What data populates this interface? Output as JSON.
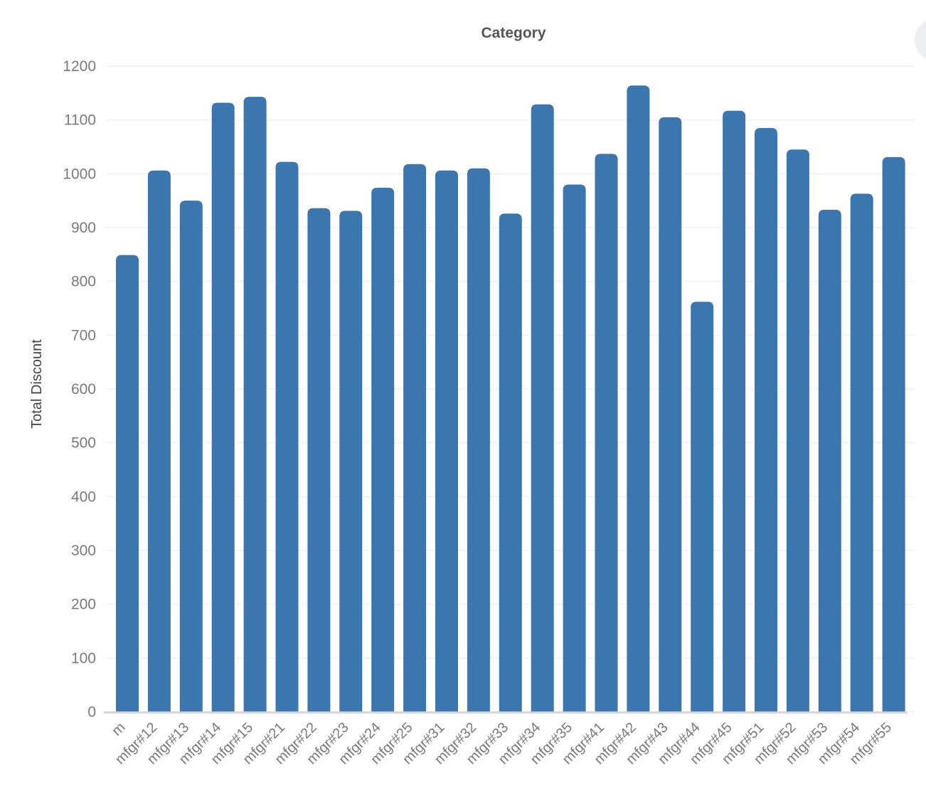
{
  "chart_data": {
    "type": "bar",
    "title": "Category",
    "xlabel": "",
    "ylabel": "Total Discount",
    "ylim": [
      0,
      1200
    ],
    "yticks": [
      0,
      100,
      200,
      300,
      400,
      500,
      600,
      700,
      800,
      900,
      1000,
      1100,
      1200
    ],
    "grid": true,
    "legend": "none",
    "categories": [
      "m",
      "mfgr#12",
      "mfgr#13",
      "mfgr#14",
      "mfgr#15",
      "mfgr#21",
      "mfgr#22",
      "mfgr#23",
      "mfgr#24",
      "mfgr#25",
      "mfgr#31",
      "mfgr#32",
      "mfgr#33",
      "mfgr#34",
      "mfgr#35",
      "mfgr#41",
      "mfgr#42",
      "mfgr#43",
      "mfgr#44",
      "mfgr#45",
      "mfgr#51",
      "mfgr#52",
      "mfgr#53",
      "mfgr#54",
      "mfgr#55"
    ],
    "values": [
      849,
      1006,
      950,
      1132,
      1143,
      1022,
      936,
      931,
      974,
      1018,
      1006,
      1010,
      926,
      1129,
      980,
      1037,
      1164,
      1105,
      762,
      1117,
      1085,
      1045,
      933,
      963,
      1031
    ],
    "colors": {
      "bar": "#3c76ae",
      "grid": "#f0f0f0",
      "axis_line": "#d6d6d6",
      "tick_text": "#7a7a7a",
      "title_text": "#555555"
    }
  }
}
